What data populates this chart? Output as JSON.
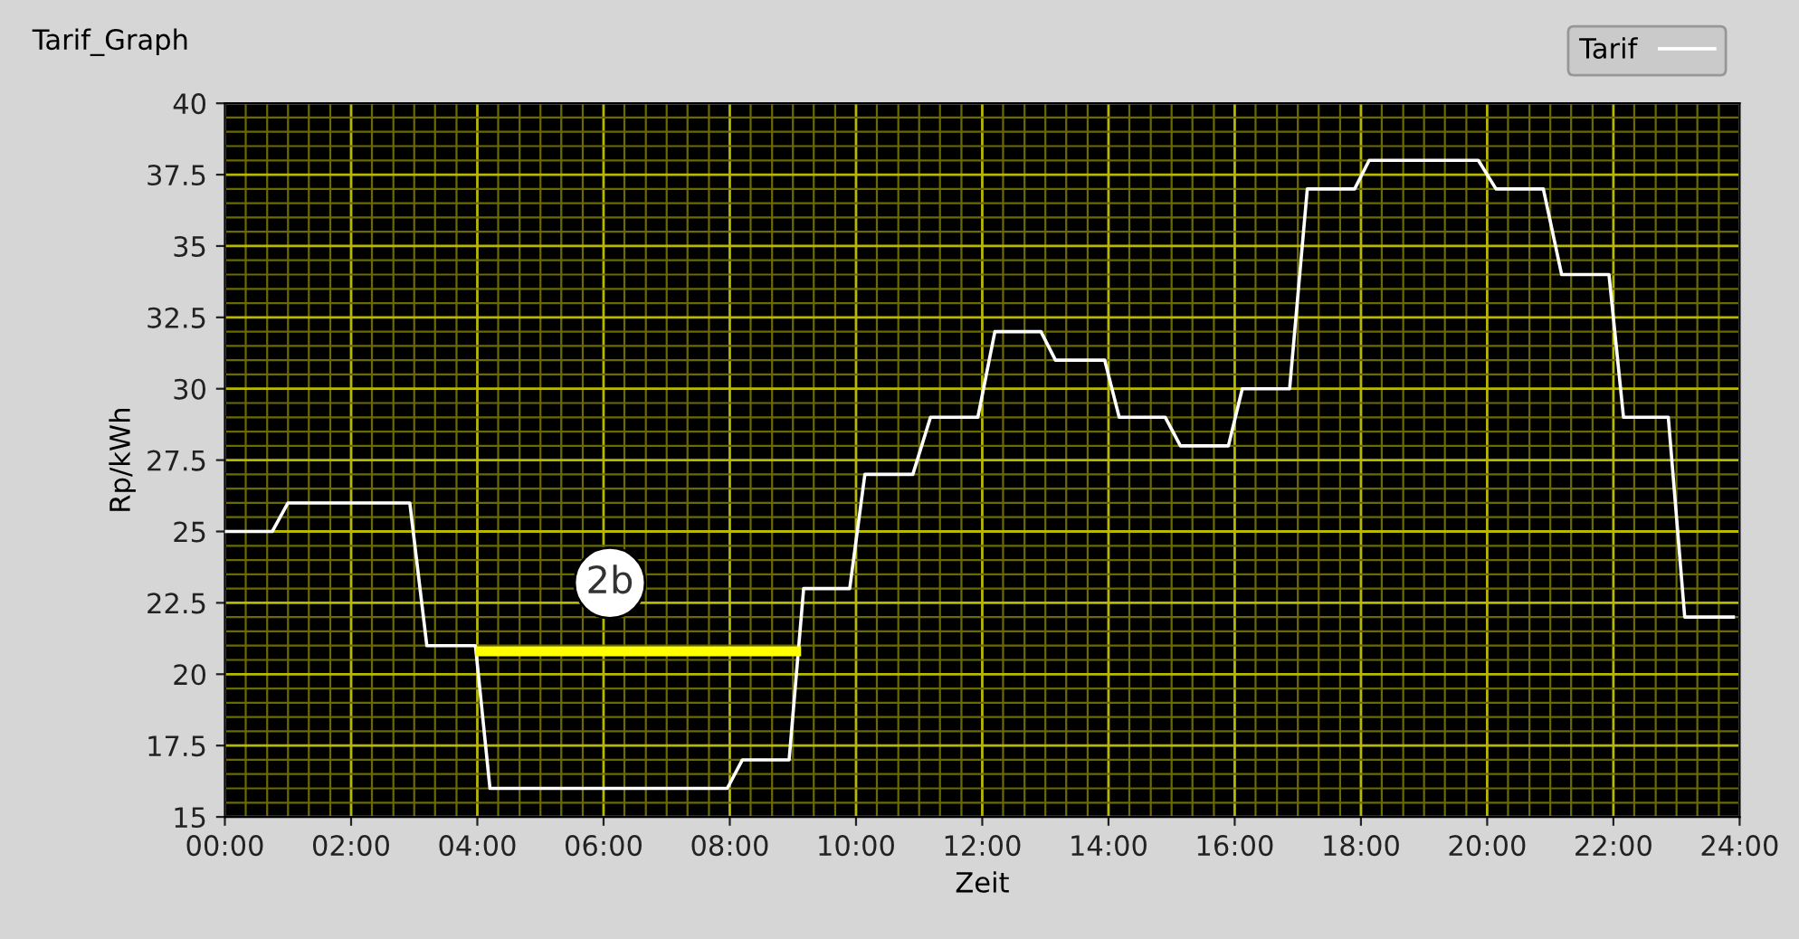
{
  "chart_data": {
    "type": "line",
    "title": "Tarif_Graph",
    "xlabel": "Zeit",
    "ylabel": "Rp/kWh",
    "xlim": [
      0,
      24
    ],
    "ylim": [
      15,
      40
    ],
    "xticks": [
      {
        "value": 0,
        "label": "00:00"
      },
      {
        "value": 0.33,
        "label": null
      },
      {
        "value": 0.67,
        "label": null
      },
      {
        "value": 1,
        "label": null
      },
      {
        "value": 1.33,
        "label": null
      },
      {
        "value": 1.67,
        "label": null
      },
      {
        "value": 2,
        "label": "02:00"
      },
      {
        "value": 2.33,
        "label": null
      },
      {
        "value": 2.67,
        "label": null
      },
      {
        "value": 3,
        "label": null
      },
      {
        "value": 3.33,
        "label": null
      },
      {
        "value": 3.67,
        "label": null
      },
      {
        "value": 4,
        "label": "04:00"
      },
      {
        "value": 4.33,
        "label": null
      },
      {
        "value": 4.67,
        "label": null
      },
      {
        "value": 5,
        "label": null
      },
      {
        "value": 5.33,
        "label": null
      },
      {
        "value": 5.67,
        "label": null
      },
      {
        "value": 6,
        "label": "06:00"
      },
      {
        "value": 6.33,
        "label": null
      },
      {
        "value": 6.67,
        "label": null
      },
      {
        "value": 7,
        "label": null
      },
      {
        "value": 7.33,
        "label": null
      },
      {
        "value": 7.67,
        "label": null
      },
      {
        "value": 8,
        "label": "08:00"
      },
      {
        "value": 8.33,
        "label": null
      },
      {
        "value": 8.67,
        "label": null
      },
      {
        "value": 9,
        "label": null
      },
      {
        "value": 9.33,
        "label": null
      },
      {
        "value": 9.67,
        "label": null
      },
      {
        "value": 10,
        "label": "10:00"
      },
      {
        "value": 10.33,
        "label": null
      },
      {
        "value": 10.67,
        "label": null
      },
      {
        "value": 11,
        "label": null
      },
      {
        "value": 11.33,
        "label": null
      },
      {
        "value": 11.67,
        "label": null
      },
      {
        "value": 12,
        "label": "12:00"
      },
      {
        "value": 12.33,
        "label": null
      },
      {
        "value": 12.67,
        "label": null
      },
      {
        "value": 13,
        "label": null
      },
      {
        "value": 13.33,
        "label": null
      },
      {
        "value": 13.67,
        "label": null
      },
      {
        "value": 14,
        "label": "14:00"
      },
      {
        "value": 14.33,
        "label": null
      },
      {
        "value": 14.67,
        "label": null
      },
      {
        "value": 15,
        "label": null
      },
      {
        "value": 15.33,
        "label": null
      },
      {
        "value": 15.67,
        "label": null
      },
      {
        "value": 16,
        "label": "16:00"
      },
      {
        "value": 16.33,
        "label": null
      },
      {
        "value": 16.67,
        "label": null
      },
      {
        "value": 17,
        "label": null
      },
      {
        "value": 17.33,
        "label": null
      },
      {
        "value": 17.67,
        "label": null
      },
      {
        "value": 18,
        "label": "18:00"
      },
      {
        "value": 18.33,
        "label": null
      },
      {
        "value": 18.67,
        "label": null
      },
      {
        "value": 19,
        "label": null
      },
      {
        "value": 19.33,
        "label": null
      },
      {
        "value": 19.67,
        "label": null
      },
      {
        "value": 20,
        "label": "20:00"
      },
      {
        "value": 20.33,
        "label": null
      },
      {
        "value": 20.67,
        "label": null
      },
      {
        "value": 21,
        "label": null
      },
      {
        "value": 21.33,
        "label": null
      },
      {
        "value": 21.67,
        "label": null
      },
      {
        "value": 22,
        "label": "22:00"
      },
      {
        "value": 22.33,
        "label": null
      },
      {
        "value": 22.67,
        "label": null
      },
      {
        "value": 23,
        "label": null
      },
      {
        "value": 23.33,
        "label": null
      },
      {
        "value": 23.67,
        "label": null
      },
      {
        "value": 24,
        "label": "24:00"
      }
    ],
    "yticks": [
      15,
      {
        "value": 15.5,
        "label": null
      },
      {
        "value": 16,
        "label": null
      },
      {
        "value": 16.5,
        "label": null
      },
      {
        "value": 17,
        "label": null
      },
      17.5,
      {
        "value": 18,
        "label": null
      },
      {
        "value": 18.5,
        "label": null
      },
      {
        "value": 19,
        "label": null
      },
      {
        "value": 19.5,
        "label": null
      },
      20,
      {
        "value": 20.5,
        "label": null
      },
      {
        "value": 21,
        "label": null
      },
      {
        "value": 21.5,
        "label": null
      },
      {
        "value": 22,
        "label": null
      },
      22.5,
      {
        "value": 23,
        "label": null
      },
      {
        "value": 23.5,
        "label": null
      },
      {
        "value": 24,
        "label": null
      },
      {
        "value": 24.5,
        "label": null
      },
      25,
      {
        "value": 25.5,
        "label": null
      },
      {
        "value": 26,
        "label": null
      },
      {
        "value": 26.5,
        "label": null
      },
      {
        "value": 27,
        "label": null
      },
      27.5,
      {
        "value": 28,
        "label": null
      },
      {
        "value": 28.5,
        "label": null
      },
      {
        "value": 29,
        "label": null
      },
      {
        "value": 29.5,
        "label": null
      },
      30,
      {
        "value": 30.5,
        "label": null
      },
      {
        "value": 31,
        "label": null
      },
      {
        "value": 31.5,
        "label": null
      },
      {
        "value": 32,
        "label": null
      },
      32.5,
      {
        "value": 33,
        "label": null
      },
      {
        "value": 33.5,
        "label": null
      },
      {
        "value": 34,
        "label": null
      },
      {
        "value": 34.5,
        "label": null
      },
      35,
      {
        "value": 35.5,
        "label": null
      },
      {
        "value": 36,
        "label": null
      },
      {
        "value": 36.5,
        "label": null
      },
      {
        "value": 37,
        "label": null
      },
      37.5,
      {
        "value": 38,
        "label": null
      },
      {
        "value": 38.5,
        "label": null
      },
      {
        "value": 39,
        "label": null
      },
      {
        "value": 39.5,
        "label": null
      },
      40
    ],
    "grid": true,
    "legend": "top right",
    "marker": "none",
    "line_style": "solid",
    "series": [
      {
        "name": "Tarif",
        "color": "#ffffff",
        "x": [
          0,
          0.75,
          1,
          2.93,
          3.2,
          3.97,
          4.2,
          7.96,
          8.2,
          8.94,
          9.17,
          9.9,
          10.14,
          10.9,
          11.18,
          11.93,
          12.2,
          12.93,
          13.16,
          13.94,
          14.17,
          14.9,
          15.14,
          15.9,
          16.12,
          16.87,
          17.15,
          17.9,
          18.13,
          19.86,
          20.14,
          20.89,
          21.18,
          21.93,
          22.16,
          22.87,
          23.13,
          23.9
        ],
        "values": [
          25,
          25,
          26,
          26,
          21,
          21,
          16,
          16,
          17,
          17,
          23,
          23,
          27,
          27,
          29,
          29,
          32,
          32,
          31,
          31,
          29,
          29,
          28,
          28,
          30,
          30,
          37,
          37,
          38,
          38,
          37,
          37,
          34,
          34,
          29,
          29,
          22,
          22
        ]
      },
      {
        "color": "#ffff00",
        "x": [
          4.05,
          9.05
        ],
        "values": [
          20.8,
          20.8
        ]
      }
    ],
    "annotations": [
      {
        "text": "2b",
        "x": 6.1,
        "y": 23.2
      }
    ]
  }
}
